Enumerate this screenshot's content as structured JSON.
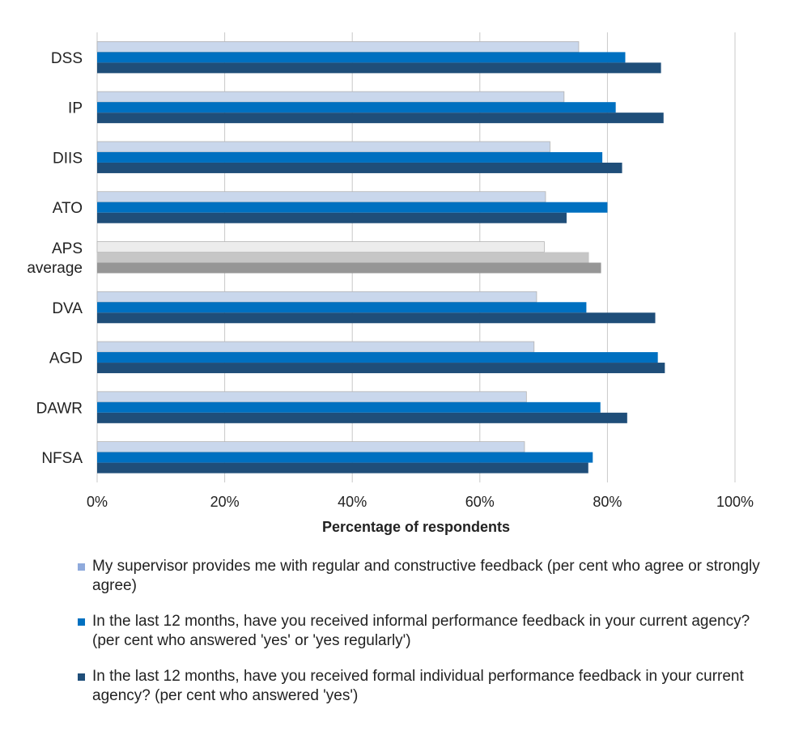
{
  "chart_data": {
    "type": "bar",
    "orientation": "horizontal",
    "xlabel": "Percentage of respondents",
    "xlim": [
      0,
      100
    ],
    "xticks": [
      "0%",
      "20%",
      "40%",
      "60%",
      "80%",
      "100%"
    ],
    "grid": true,
    "legend_position": "bottom",
    "categories": [
      [
        "DSS"
      ],
      [
        "IP"
      ],
      [
        "DIIS"
      ],
      [
        "ATO"
      ],
      [
        "APS",
        "average"
      ],
      [
        "DVA"
      ],
      [
        "AGD"
      ],
      [
        "DAWR"
      ],
      [
        "NFSA"
      ]
    ],
    "highlight_category_index": 4,
    "series": [
      {
        "name": "My supervisor provides me with regular and constructive feedback (per cent who agree or strongly agree)",
        "color": "#c9d7ec",
        "highlight_color": "#ececec",
        "legend_color": "#8faadc",
        "values": [
          75.5,
          73.2,
          71.0,
          70.3,
          70.1,
          68.9,
          68.5,
          67.3,
          67.0
        ]
      },
      {
        "name": "In the last 12 months, have you received informal performance feedback in your current agency? (per cent who answered 'yes' or 'yes regularly')",
        "color": "#0070c0",
        "highlight_color": "#c6c6c6",
        "legend_color": "#0070c0",
        "values": [
          82.8,
          81.3,
          79.2,
          80.0,
          77.1,
          76.7,
          87.9,
          78.9,
          77.7
        ]
      },
      {
        "name": "In the last 12 months, have you received formal individual performance feedback in your current agency? (per cent who answered 'yes')",
        "color": "#1f4e79",
        "highlight_color": "#969696",
        "legend_color": "#1f4e79",
        "values": [
          88.4,
          88.8,
          82.3,
          73.6,
          79.0,
          87.5,
          89.0,
          83.1,
          77.0
        ]
      }
    ]
  }
}
